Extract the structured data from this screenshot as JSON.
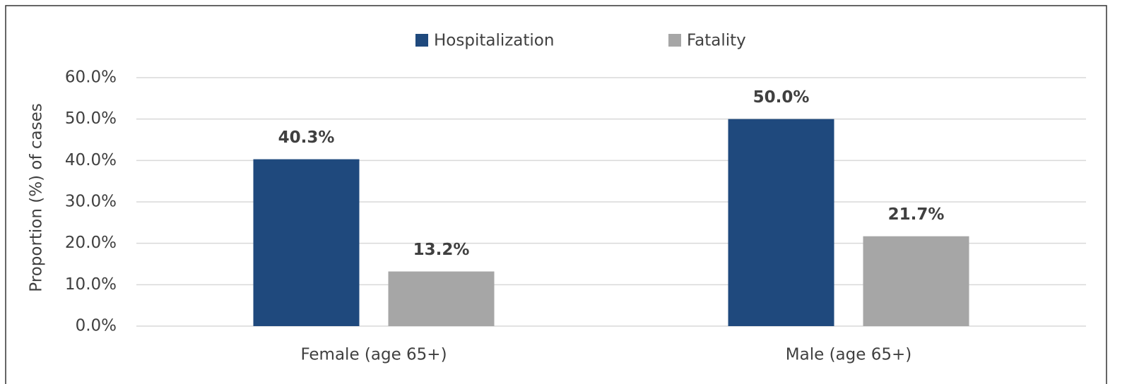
{
  "chart_data": {
    "type": "bar",
    "y_axis_label": "Proportion (%) of cases",
    "categories": [
      "Female (age 65+)",
      "Male (age 65+)"
    ],
    "series": [
      {
        "name": "Hospitalization",
        "color": "#1f497d",
        "values": [
          40.3,
          50
        ],
        "value_labels": [
          "40.3%",
          "50.0%"
        ]
      },
      {
        "name": "Fatality",
        "color": "#a6a6a6",
        "values": [
          13.2,
          21.7
        ],
        "value_labels": [
          "13.2%",
          "21.7%"
        ]
      }
    ],
    "ylim": [
      0,
      60
    ],
    "yticks": [
      {
        "value": 0,
        "label": "0.0%"
      },
      {
        "value": 10,
        "label": "10.0%"
      },
      {
        "value": 20,
        "label": "20.0%"
      },
      {
        "value": 30,
        "label": "30.0%"
      },
      {
        "value": 40,
        "label": "40.0%"
      },
      {
        "value": 50,
        "label": "50.0%"
      },
      {
        "value": 60,
        "label": "60.0%"
      }
    ],
    "grid": true,
    "legend": "top"
  }
}
